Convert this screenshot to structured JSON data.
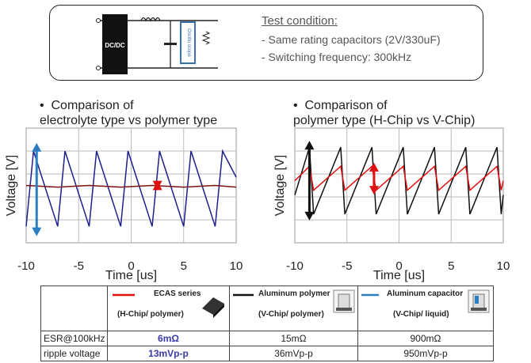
{
  "test_condition": {
    "title": "Test condition:",
    "lines": [
      "- Same rating capacitors (2V/330uF)",
      "- Switching frequency: 300kHz"
    ],
    "circuit": {
      "converter_label": "DC/DC",
      "probe_label": "Oscillo scope"
    }
  },
  "chart_data": [
    {
      "type": "line",
      "title_prefix": "•",
      "title_line1": "Comparison of",
      "title_line2": "electrolyte type vs polymer type",
      "xlabel": "Time [us]",
      "ylabel": "Voltage [V]",
      "xlim": [
        -10,
        10
      ],
      "x_ticks": [
        "-10",
        "-5",
        "0",
        "5",
        "10"
      ],
      "grid": true,
      "series": [
        {
          "color": "#1f1f8f",
          "x": [
            -10,
            -9.3,
            -7,
            -6.3,
            -4,
            -3.3,
            -1,
            -0.3,
            2,
            2.7,
            5,
            5.7,
            8,
            8.7,
            10
          ],
          "y": [
            -0.5,
            0.42,
            -0.5,
            0.42,
            -0.5,
            0.42,
            -0.5,
            0.42,
            -0.5,
            0.42,
            -0.5,
            0.42,
            -0.5,
            0.42,
            0.1
          ]
        },
        {
          "color": "#7a1010",
          "x": [
            -10,
            -7,
            -4,
            -1,
            2,
            5,
            8,
            10
          ],
          "y": [
            0.0,
            -0.02,
            0.0,
            -0.02,
            0.0,
            -0.02,
            0.0,
            -0.02
          ]
        }
      ],
      "annotations": [
        {
          "type": "double-arrow",
          "color": "#2b7fc0",
          "x": -9,
          "y1": 0.5,
          "y2": -0.6
        },
        {
          "type": "double-arrow",
          "color": "#e01010",
          "x": 2.5,
          "y1": 0.03,
          "y2": -0.03
        }
      ]
    },
    {
      "type": "line",
      "title_prefix": "•",
      "title_line1": "Comparison of",
      "title_line2": "polymer type (H-Chip vs V-Chip)",
      "xlabel": "Time [us]",
      "ylabel": "Voltage [V]",
      "xlim": [
        -10,
        10
      ],
      "x_ticks": [
        "-10",
        "-5",
        "0",
        "5",
        "10"
      ],
      "grid": true,
      "series": [
        {
          "color": "#111111",
          "x": [
            -10,
            -8.6,
            -8.2,
            -5.6,
            -5.2,
            -2.6,
            -2.2,
            0.4,
            0.8,
            3.4,
            3.8,
            6.4,
            6.8,
            9.4,
            9.8,
            10
          ],
          "y": [
            -0.1,
            0.4,
            -0.3,
            0.4,
            -0.3,
            0.4,
            -0.3,
            0.4,
            -0.3,
            0.4,
            -0.3,
            0.4,
            -0.3,
            0.4,
            -0.3,
            -0.1
          ]
        },
        {
          "color": "#e01010",
          "x": [
            -10,
            -8.6,
            -8.2,
            -5.6,
            -5.2,
            -2.6,
            -2.2,
            0.4,
            0.8,
            3.4,
            3.8,
            6.4,
            6.8,
            9.4,
            9.8,
            10
          ],
          "y": [
            0.05,
            0.2,
            -0.05,
            0.2,
            -0.05,
            0.2,
            -0.05,
            0.2,
            -0.05,
            0.2,
            -0.05,
            0.2,
            -0.05,
            0.2,
            -0.05,
            0.05
          ]
        }
      ],
      "annotations": [
        {
          "type": "double-arrow",
          "color": "#111111",
          "x": -8.6,
          "y1": 0.45,
          "y2": -0.35
        },
        {
          "type": "double-arrow",
          "color": "#e01010",
          "x": -2.4,
          "y1": 0.22,
          "y2": -0.08
        }
      ]
    }
  ],
  "table": {
    "headers": [
      {
        "line_color": "#e01010",
        "name": "ECAS series",
        "sub": "(H-Chip/ polymer)",
        "icon": "chip-icon"
      },
      {
        "line_color": "#111111",
        "name": "Aluminum polymer",
        "sub": "(V-Chip/ polymer)",
        "icon": "can-icon"
      },
      {
        "line_color": "#2b7fc0",
        "name": "Aluminum capacitor",
        "sub": "(V-Chip/ liquid)",
        "icon": "can-icon"
      }
    ],
    "rows": [
      {
        "label": "ESR@100kHz",
        "values": [
          "6mΩ",
          "15mΩ",
          "900mΩ"
        ]
      },
      {
        "label": "ripple voltage",
        "values": [
          "13mVp-p",
          "36mVp-p",
          "950mVp-p"
        ]
      }
    ],
    "highlight_color": "#3a3aa8"
  }
}
